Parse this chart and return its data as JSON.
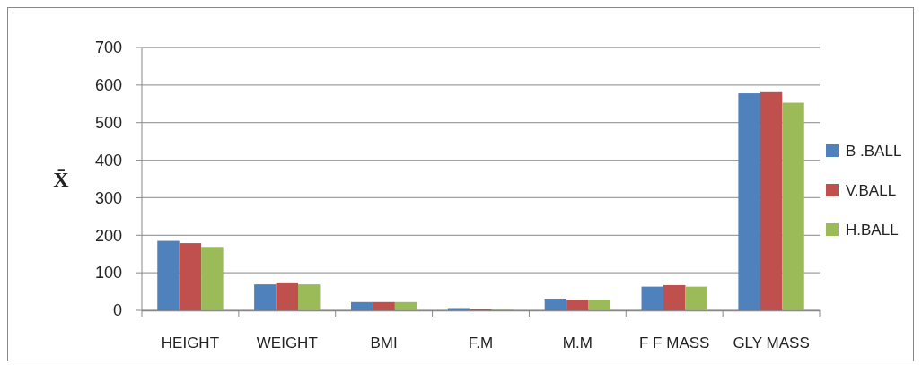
{
  "chart_data": {
    "type": "bar",
    "ylabel": "X̄",
    "categories": [
      "HEIGHT",
      "WEIGHT",
      "BMI",
      "F.M",
      "M.M",
      "F F MASS",
      "GLY MASS"
    ],
    "series": [
      {
        "name": "B .BALL",
        "color": "#4f81bd",
        "values": [
          185,
          69,
          22,
          6,
          31,
          63,
          578
        ]
      },
      {
        "name": "V.BALL",
        "color": "#c0504d",
        "values": [
          179,
          72,
          22,
          3,
          28,
          67,
          581
        ]
      },
      {
        "name": "H.BALL",
        "color": "#9bbb59",
        "values": [
          169,
          69,
          22,
          3,
          28,
          63,
          553
        ]
      }
    ],
    "ylim": [
      0,
      700
    ],
    "yticks": [
      0,
      100,
      200,
      300,
      400,
      500,
      600,
      700
    ],
    "grid": "y",
    "legend": "right"
  }
}
